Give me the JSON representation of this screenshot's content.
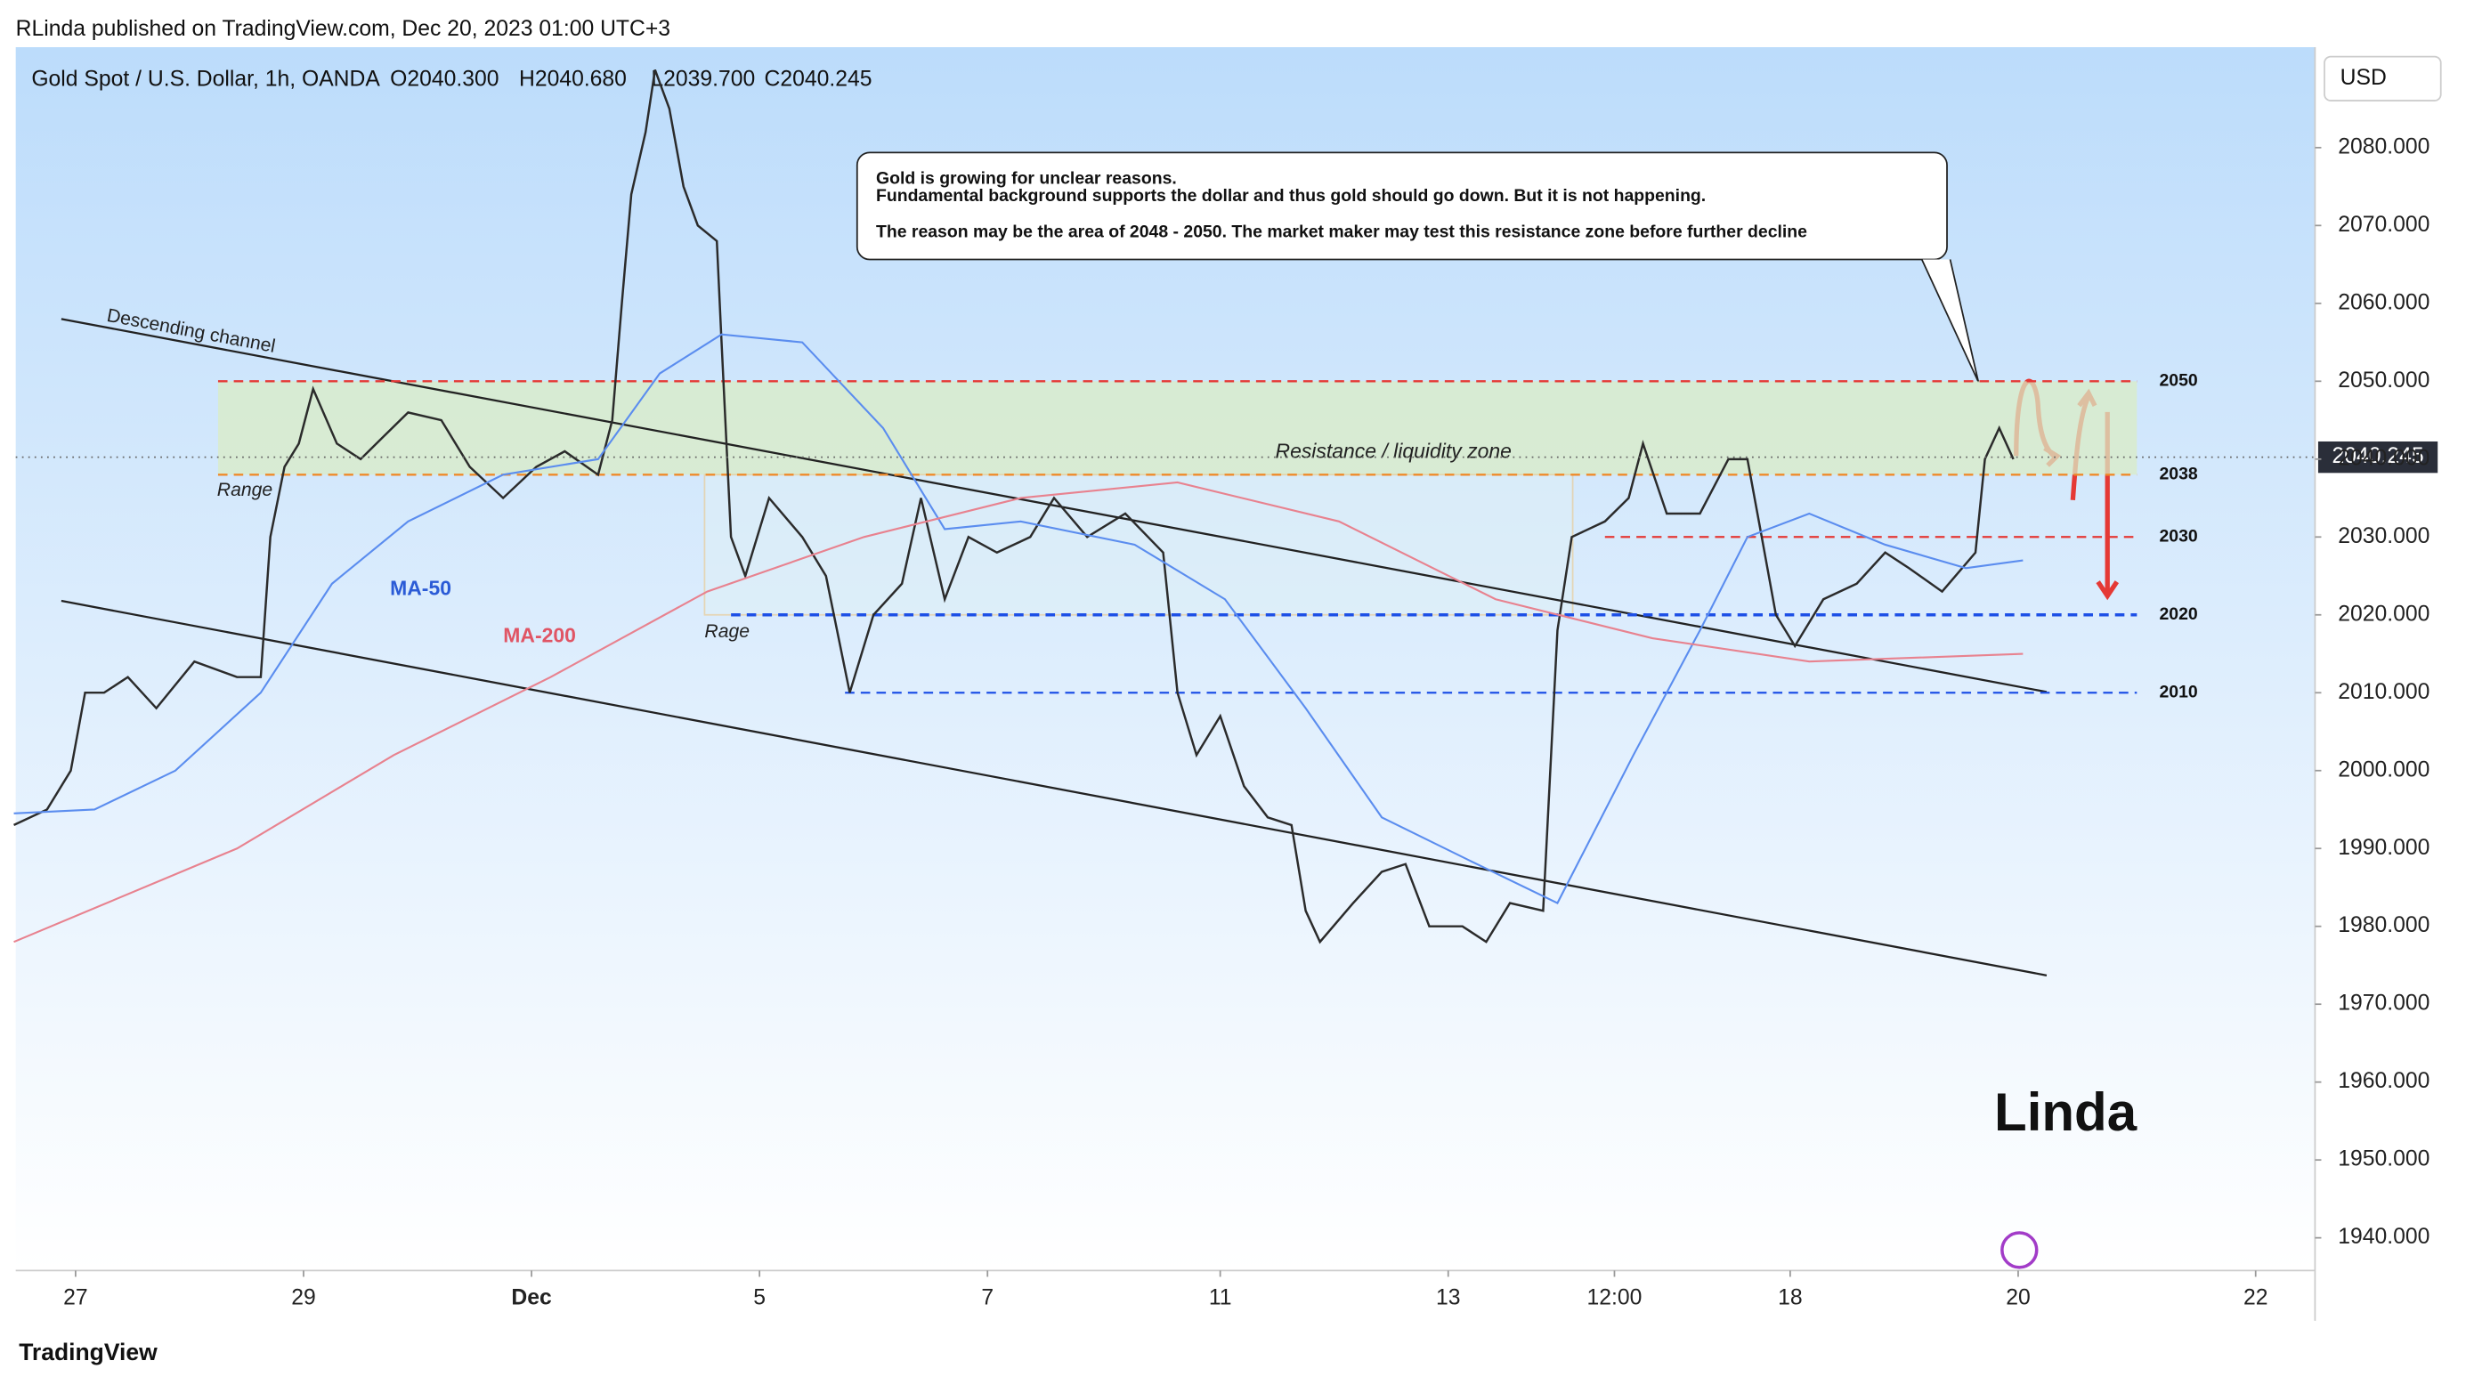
{
  "chart_data": {
    "type": "line",
    "published": "RLinda published on TradingView.com, Dec 20, 2023 01:00 UTC+3",
    "symbol": "Gold Spot / U.S. Dollar, 1h, OANDA",
    "ohlc": [
      "O2040.300",
      "H2040.680",
      "L2039.700",
      "C2040.245"
    ],
    "currency": "USD",
    "last_price": 2040.245,
    "footer": "TradingView",
    "annotation": [
      "Gold is growing for unclear reasons.",
      "Fundamental background supports the dollar and thus gold should go down. But it is not happening.",
      "The reason may be the area of 2048 - 2050. The market maker may test this resistance zone before further decline"
    ],
    "zone": {
      "label": "Resistance / liquidity zone",
      "from": 30,
      "to": 434,
      "low": 2038,
      "high": 2050
    },
    "labels": [
      "Range",
      "Rage"
    ],
    "channel": {
      "label": "Descending channel",
      "x": [
        -3,
        415
      ],
      "upper": [
        2058,
        2010.1
      ],
      "lower": [
        2021.8,
        1973.7
      ]
    },
    "levels": [
      {
        "value": 2050,
        "from": 30,
        "color": "#e53935"
      },
      {
        "value": 2038,
        "from": 30,
        "color": "#ef8a2a"
      },
      {
        "value": 2030,
        "from": 322,
        "color": "#e53935"
      },
      {
        "value": 2020,
        "from": 138,
        "color": "#1e50e6"
      },
      {
        "value": 2010,
        "from": 162,
        "color": "#1e50e6"
      }
    ],
    "xlim": [
      -12.6,
      471.5
    ],
    "ylim": [
      1935.8,
      2092.9
    ],
    "xticks": [
      {
        "value": 0,
        "label": "27"
      },
      {
        "value": 48,
        "label": "29"
      },
      {
        "value": 96,
        "label": "Dec"
      },
      {
        "value": 144,
        "label": "5"
      },
      {
        "value": 192,
        "label": "7"
      },
      {
        "value": 241,
        "label": "11"
      },
      {
        "value": 289,
        "label": "13"
      },
      {
        "value": 324,
        "label": "12:00"
      },
      {
        "value": 361,
        "label": "18"
      },
      {
        "value": 409,
        "label": "20"
      },
      {
        "value": 459,
        "label": "22"
      }
    ],
    "yticks": [
      {
        "value": 1940,
        "label": "1940.000"
      },
      {
        "value": 1950,
        "label": "1950.000"
      },
      {
        "value": 1960,
        "label": "1960.000"
      },
      {
        "value": 1970,
        "label": "1970.000"
      },
      {
        "value": 1980,
        "label": "1980.000"
      },
      {
        "value": 1990,
        "label": "1990.000"
      },
      {
        "value": 2000,
        "label": "2000.000"
      },
      {
        "value": 2010,
        "label": "2010.000"
      },
      {
        "value": 2020,
        "label": "2020.000"
      },
      {
        "value": 2030,
        "label": "2030.000"
      },
      {
        "value": 2040,
        "label": "2040.000"
      },
      {
        "value": 2050,
        "label": "2050.000"
      },
      {
        "value": 2060,
        "label": "2060.000"
      },
      {
        "value": 2070,
        "label": "2070.000"
      },
      {
        "value": 2080,
        "label": "2080.000"
      }
    ],
    "series": [
      {
        "color": "#2b2b2b",
        "x": [
          -13,
          -6,
          -1,
          2,
          6,
          11,
          17,
          25,
          34,
          39,
          41,
          44,
          47,
          50,
          55,
          60,
          65,
          70,
          77,
          83,
          90,
          97,
          103,
          110,
          113,
          115,
          117,
          120,
          122,
          125,
          128,
          131,
          135,
          136,
          138,
          141,
          146,
          153,
          158,
          163,
          168,
          174,
          178,
          183,
          188,
          194,
          201,
          206,
          213,
          221,
          229,
          232,
          236,
          241,
          246,
          251,
          256,
          259,
          262,
          269,
          275,
          280,
          285,
          292,
          297,
          302,
          309,
          312,
          315,
          322,
          327,
          330,
          335,
          342,
          348,
          352,
          355,
          358,
          362,
          368,
          375,
          381,
          386,
          393,
          400,
          402,
          405,
          408
        ],
        "values": [
          1993,
          1995,
          2000,
          2010,
          2010,
          2012,
          2008,
          2014,
          2012,
          2012,
          2030,
          2039,
          2042,
          2049,
          2042,
          2040,
          2043,
          2046,
          2045,
          2039,
          2035,
          2039,
          2041,
          2038,
          2045,
          2060,
          2074,
          2082,
          2090,
          2085,
          2075,
          2070,
          2068,
          2055,
          2030,
          2025,
          2035,
          2030,
          2025,
          2010,
          2020,
          2024,
          2035,
          2022,
          2030,
          2028,
          2030,
          2035,
          2030,
          2033,
          2028,
          2010,
          2002,
          2007,
          1998,
          1994,
          1993,
          1982,
          1978,
          1983,
          1987,
          1988,
          1980,
          1980,
          1978,
          1983,
          1982,
          2018,
          2030,
          2032,
          2035,
          2042,
          2033,
          2033,
          2040,
          2040,
          2030,
          2020,
          2016,
          2022,
          2024,
          2028,
          2026,
          2023,
          2028,
          2040,
          2044,
          2040
        ]
      },
      {
        "name": "MA-50",
        "color": "#5b8def",
        "x": [
          -13,
          4,
          21,
          39,
          54,
          70,
          90,
          110,
          123,
          136,
          153,
          170,
          183,
          199,
          223,
          242,
          259,
          275,
          295,
          312,
          328,
          342,
          352,
          365,
          381,
          398,
          410
        ],
        "values": [
          1994.5,
          1995,
          2000,
          2010,
          2024,
          2032,
          2038,
          2040,
          2051,
          2056,
          2055,
          2044,
          2031,
          2032,
          2029,
          2022,
          2008,
          1994,
          1988,
          1983,
          2002,
          2018,
          2030,
          2033,
          2029,
          2026,
          2027
        ]
      },
      {
        "name": "MA-200",
        "color": "#e8828f",
        "x": [
          -13,
          34,
          67,
          100,
          133,
          166,
          199,
          232,
          266,
          299,
          332,
          365,
          410
        ],
        "values": [
          1978,
          1990,
          2002,
          2012,
          2023,
          2030,
          2035,
          2037,
          2032,
          2022,
          2017,
          2014,
          2015
        ]
      }
    ]
  }
}
